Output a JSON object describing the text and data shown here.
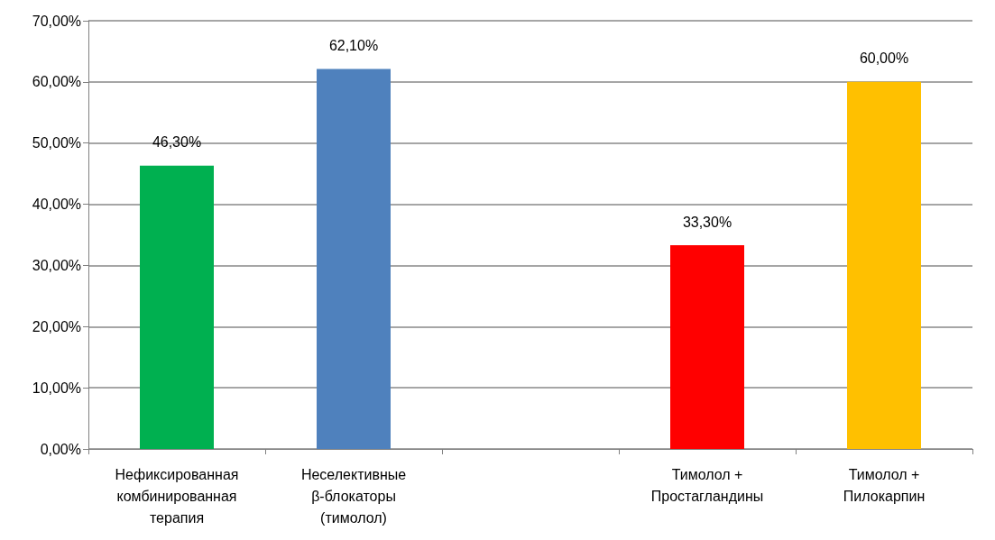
{
  "chart_data": {
    "type": "bar",
    "categories": [
      "Нефиксированная комбинированная терапия",
      "Неселективные β-блокаторы (тимолол)",
      null,
      "Тимолол + Простагландины",
      "Тимолол + Пилокарпин"
    ],
    "values": [
      46.3,
      62.1,
      null,
      33.3,
      60.0
    ],
    "colors": [
      "#00b050",
      "#4f81bd",
      "#7f7f7f",
      "#ff0000",
      "#ffc000"
    ],
    "value_labels": [
      "46,30%",
      "62,10%",
      null,
      "33,30%",
      "60,00%"
    ],
    "ylim": [
      0,
      70
    ],
    "yticks": [
      {
        "value": 0,
        "label": "0,00%"
      },
      {
        "value": 10,
        "label": "10,00%"
      },
      {
        "value": 20,
        "label": "20,00%"
      },
      {
        "value": 30,
        "label": "30,00%"
      },
      {
        "value": 40,
        "label": "40,00%"
      },
      {
        "value": 50,
        "label": "50,00%"
      },
      {
        "value": 60,
        "label": "60,00%"
      },
      {
        "value": 70,
        "label": "70,00%"
      }
    ],
    "grid": "y"
  }
}
